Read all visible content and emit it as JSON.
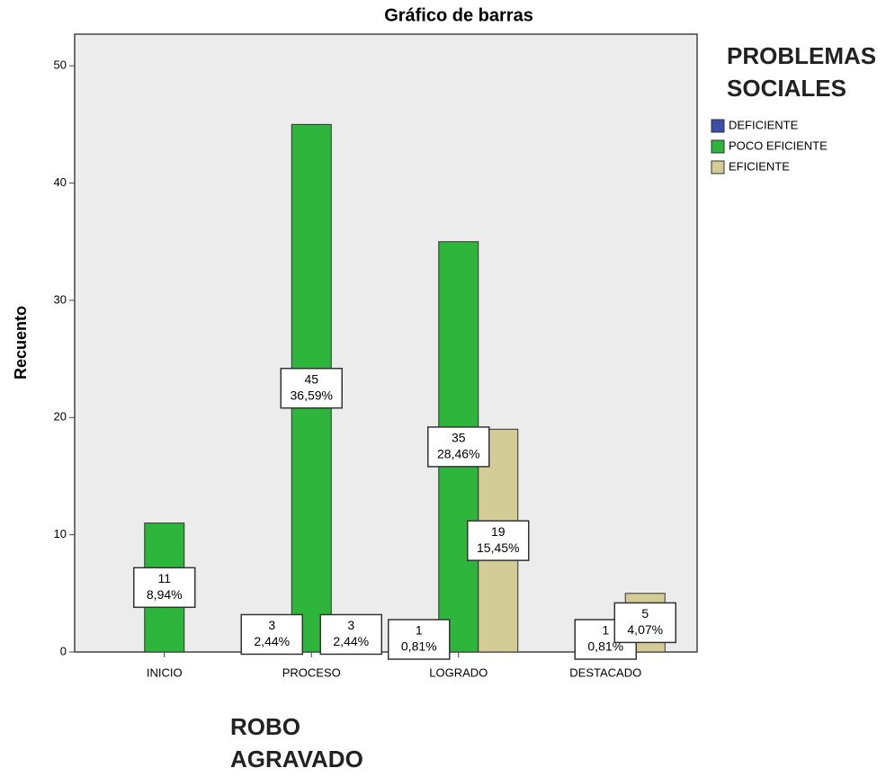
{
  "chart_data": {
    "type": "bar",
    "title": "Gráfico de barras",
    "y_label": "Recuento",
    "x_label": "ROBO AGRAVADO",
    "legend_title": "PROBLEMAS SOCIALES",
    "categories": [
      "INICIO",
      "PROCESO",
      "LOGRADO",
      "DESTACADO"
    ],
    "series": [
      {
        "name": "DEFICIENTE",
        "color": "#3a4fa8",
        "values": [
          null,
          3,
          1,
          null
        ],
        "percent_labels": [
          null,
          "2,44%",
          "0,81%",
          null
        ]
      },
      {
        "name": "POCO EFICIENTE",
        "color": "#2db53c",
        "values": [
          11,
          45,
          35,
          1
        ],
        "percent_labels": [
          "8,94%",
          "36,59%",
          "28,46%",
          "0,81%"
        ]
      },
      {
        "name": "EFICIENTE",
        "color": "#d4cc97",
        "values": [
          null,
          3,
          19,
          5
        ],
        "percent_labels": [
          null,
          "2,44%",
          "15,45%",
          "4,07%"
        ]
      }
    ],
    "ylim": [
      0,
      52.7
    ],
    "yticks": [
      0,
      10,
      20,
      30,
      40,
      50
    ],
    "grid": false
  }
}
